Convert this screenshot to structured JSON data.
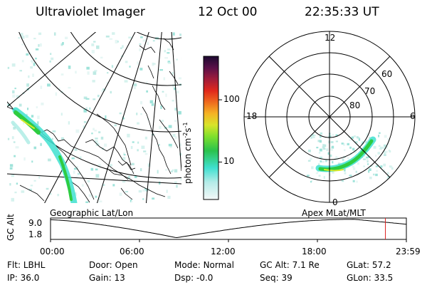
{
  "header": {
    "title": "Ultraviolet Imager",
    "date": "12 Oct 00",
    "time": "22:35:33 UT"
  },
  "left_panel": {
    "caption": "Geographic Lat/Lon"
  },
  "colorbar": {
    "unit_label": "photon cm",
    "unit_sup1": "-2",
    "unit_s": "s",
    "unit_sup2": "-1",
    "ticks": [
      {
        "value": 100,
        "label": "100"
      },
      {
        "value": 10,
        "label": "10"
      }
    ],
    "scale": "log",
    "range": [
      2.5,
      500
    ]
  },
  "right_panel": {
    "caption": "Apex MLat/MLT",
    "mlt_labels": {
      "top": "12",
      "left": "18",
      "right": "6",
      "bottom": "0"
    },
    "lat_labels": [
      "60",
      "70",
      "80"
    ]
  },
  "timeline": {
    "axis_label": "GC Alt",
    "y_ticks": [
      "9.0",
      "1.8"
    ],
    "x_ticks": [
      "00:00",
      "06:00",
      "12:00",
      "18:00",
      "23:59"
    ],
    "marker_time": "22:35",
    "marker_color": "#dd2222"
  },
  "info": {
    "row1": [
      {
        "key": "Flt:",
        "value": "LBHL"
      },
      {
        "key": "Door:",
        "value": "Open"
      },
      {
        "key": "Mode:",
        "value": "Normal"
      },
      {
        "key": "GC Alt:",
        "value": "7.1 Re"
      },
      {
        "key": "GLat:",
        "value": "57.2"
      }
    ],
    "row2": [
      {
        "key": "IP:",
        "value": "36.0"
      },
      {
        "key": "Gain:",
        "value": "13"
      },
      {
        "key": "Dsp:",
        "value": "-0.0"
      },
      {
        "key": "Seq:",
        "value": "39"
      },
      {
        "key": "GLon:",
        "value": "33.5"
      }
    ]
  },
  "colors": {
    "aurora_green": "#2ecc40",
    "aurora_cyan": "#40e0d0",
    "aurora_yellow": "#d7e82b"
  }
}
